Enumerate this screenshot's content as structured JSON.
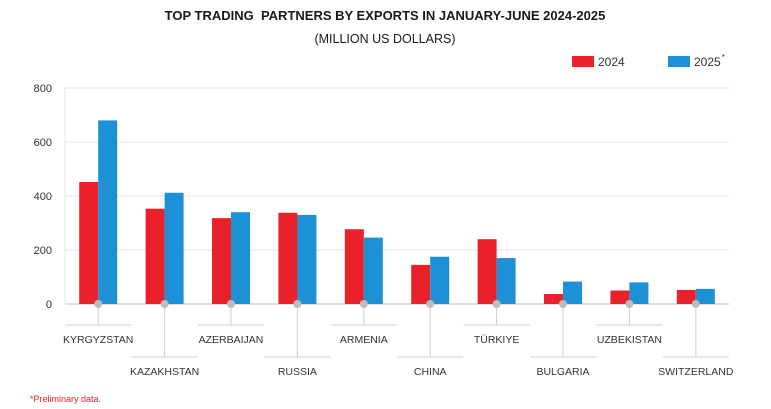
{
  "chart_data": {
    "type": "bar",
    "title": "TOP TRADING  PARTNERS BY EXPORTS IN JANUARY-JUNE 2024-2025",
    "subtitle": "(MILLION US DOLLARS)",
    "categories": [
      "KYRGYZSTAN",
      "KAZAKHSTAN",
      "AZERBAIJAN",
      "RUSSIA",
      "ARMENIA",
      "CHINA",
      "TÜRKIYE",
      "BULGARIA",
      "UZBEKISTAN",
      "SWITZERLAND"
    ],
    "series": [
      {
        "name": "2024",
        "color": "#e8212b",
        "values": [
          452,
          353,
          318,
          338,
          277,
          145,
          240,
          37,
          50,
          52
        ]
      },
      {
        "name": "2025",
        "name_suffix": "*",
        "color": "#1e90d6",
        "values": [
          680,
          412,
          340,
          330,
          246,
          175,
          170,
          83,
          80,
          56
        ]
      }
    ],
    "yticks": [
      0,
      200,
      400,
      600,
      800
    ],
    "ylim": [
      0,
      800
    ],
    "grid": true,
    "legend": "top-right",
    "footnote": "*Preliminary data."
  }
}
